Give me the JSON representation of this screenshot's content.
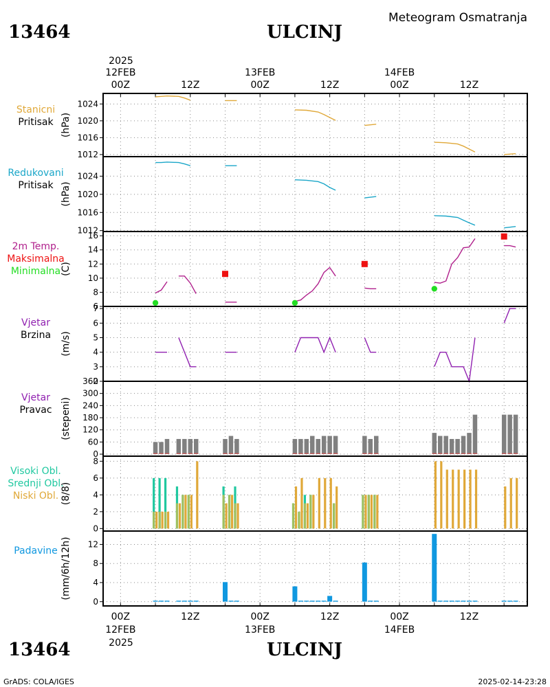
{
  "header": {
    "station_id": "13464",
    "station_name": "ULCINJ",
    "subtitle": "Meteogram Osmatranja"
  },
  "footer": {
    "station_id": "13464",
    "station_name": "ULCINJ",
    "credit": "GrADS: COLA/IGES",
    "timestamp": "2025-02-14-23:28"
  },
  "time_axis": {
    "year": "2025",
    "day_labels": [
      "12FEB",
      "13FEB",
      "14FEB"
    ],
    "hour_labels": [
      "00Z",
      "12Z",
      "00Z",
      "12Z",
      "00Z",
      "12Z"
    ],
    "hours": [
      0,
      12,
      24,
      36,
      48,
      60
    ],
    "range_hours": [
      -3,
      70
    ]
  },
  "colors": {
    "pressure_station": "#e0a838",
    "pressure_reduced": "#1aa6c8",
    "temp": "#b0208c",
    "tmax": "#ee1111",
    "tmin": "#22dd22",
    "wind": "#9020b0",
    "direction": "#808080",
    "direction_low": "#e05050",
    "cloud_high": "#20c8a0",
    "cloud_mid": "#a0c060",
    "cloud_low": "#e0a838",
    "precip": "#1098e0"
  },
  "chart_data": [
    {
      "type": "line",
      "title": "",
      "label_lines": [
        "Stanicni",
        "Pritisak"
      ],
      "ylabel": "(hPa)",
      "ylim": [
        1011.5,
        1026.5
      ],
      "yticks": [
        1012,
        1016,
        1020,
        1024
      ],
      "series": [
        {
          "color_key": "pressure_station",
          "segments": [
            [
              [
                6,
                1025.7
              ],
              [
                7,
                1025.8
              ],
              [
                8,
                1025.9
              ],
              [
                10,
                1025.8
              ],
              [
                11,
                1025.4
              ],
              [
                12,
                1024.9
              ]
            ],
            [
              [
                18,
                1024.8
              ],
              [
                20,
                1024.8
              ]
            ],
            [
              [
                30,
                1022.6
              ],
              [
                32,
                1022.5
              ],
              [
                34,
                1022.1
              ],
              [
                35,
                1021.5
              ],
              [
                36,
                1020.8
              ],
              [
                37,
                1020.1
              ]
            ],
            [
              [
                42,
                1018.9
              ],
              [
                44,
                1019.2
              ]
            ],
            [
              [
                54,
                1014.9
              ],
              [
                56,
                1014.8
              ],
              [
                58,
                1014.5
              ],
              [
                59,
                1014.0
              ],
              [
                60,
                1013.3
              ],
              [
                61,
                1012.6
              ]
            ],
            [
              [
                66,
                1012.0
              ],
              [
                68,
                1012.2
              ]
            ]
          ]
        }
      ]
    },
    {
      "type": "line",
      "title": "",
      "label_lines": [
        "Redukovani",
        "Pritisak"
      ],
      "ylabel": "(hPa)",
      "ylim": [
        1011.8,
        1028.3
      ],
      "yticks": [
        1012,
        1016,
        1020,
        1024
      ],
      "series": [
        {
          "color_key": "pressure_reduced",
          "segments": [
            [
              [
                6,
                1027.0
              ],
              [
                7,
                1027.0
              ],
              [
                8,
                1027.1
              ],
              [
                10,
                1027.0
              ],
              [
                11,
                1026.7
              ],
              [
                12,
                1026.3
              ]
            ],
            [
              [
                18,
                1026.3
              ],
              [
                20,
                1026.3
              ]
            ],
            [
              [
                30,
                1023.2
              ],
              [
                32,
                1023.1
              ],
              [
                34,
                1022.8
              ],
              [
                35,
                1022.3
              ],
              [
                36,
                1021.5
              ],
              [
                37,
                1020.9
              ]
            ],
            [
              [
                42,
                1019.2
              ],
              [
                44,
                1019.5
              ]
            ],
            [
              [
                54,
                1015.3
              ],
              [
                56,
                1015.2
              ],
              [
                58,
                1014.9
              ],
              [
                59,
                1014.3
              ],
              [
                60,
                1013.7
              ],
              [
                61,
                1013.2
              ]
            ],
            [
              [
                66,
                1012.6
              ],
              [
                68,
                1012.9
              ]
            ]
          ]
        }
      ]
    },
    {
      "type": "line",
      "title": "",
      "label_lines": [
        "2m Temp.",
        "Maksimalna",
        "Minimalna"
      ],
      "ylabel": "(C)",
      "ylim": [
        6,
        16.6
      ],
      "yticks": [
        6,
        8,
        10,
        12,
        14,
        16
      ],
      "series": [
        {
          "color_key": "temp",
          "segments": [
            [
              [
                6,
                7.9
              ],
              [
                7,
                8.3
              ],
              [
                8,
                9.5
              ]
            ],
            [
              [
                10,
                10.3
              ],
              [
                11,
                10.3
              ],
              [
                12,
                9.3
              ],
              [
                13,
                7.8
              ]
            ],
            [
              [
                18,
                6.6
              ],
              [
                20,
                6.6
              ]
            ],
            [
              [
                30,
                6.7
              ],
              [
                31,
                6.9
              ],
              [
                32,
                7.6
              ],
              [
                33,
                8.2
              ],
              [
                34,
                9.2
              ],
              [
                35,
                10.8
              ],
              [
                36,
                11.5
              ],
              [
                37,
                10.3
              ]
            ],
            [
              [
                42,
                8.6
              ],
              [
                43,
                8.5
              ],
              [
                44,
                8.5
              ]
            ],
            [
              [
                54,
                9.4
              ],
              [
                55,
                9.3
              ],
              [
                56,
                9.6
              ],
              [
                57,
                12.0
              ],
              [
                58,
                12.9
              ],
              [
                59,
                14.3
              ],
              [
                60,
                14.4
              ],
              [
                61,
                15.6
              ]
            ],
            [
              [
                66,
                14.6
              ],
              [
                67,
                14.6
              ],
              [
                68,
                14.4
              ]
            ]
          ]
        }
      ],
      "tmax_points": [
        [
          18,
          10.6
        ],
        [
          42,
          12.0
        ],
        [
          66,
          15.9
        ]
      ],
      "tmin_points": [
        [
          6,
          6.5
        ],
        [
          30,
          6.5
        ],
        [
          54,
          8.5
        ]
      ]
    },
    {
      "type": "line",
      "title": "",
      "label_lines": [
        "Vjetar",
        "Brzina"
      ],
      "ylabel": "(m/s)",
      "ylim": [
        2,
        7.15
      ],
      "yticks": [
        2,
        3,
        4,
        5,
        6,
        7
      ],
      "series": [
        {
          "color_key": "wind",
          "segments": [
            [
              [
                6,
                4
              ],
              [
                8,
                4
              ]
            ],
            [
              [
                10,
                5
              ],
              [
                12,
                3
              ],
              [
                13,
                3
              ]
            ],
            [
              [
                18,
                4
              ],
              [
                20,
                4
              ]
            ],
            [
              [
                30,
                4
              ],
              [
                31,
                5
              ],
              [
                34,
                5
              ],
              [
                35,
                4
              ],
              [
                36,
                5
              ],
              [
                37,
                4
              ]
            ],
            [
              [
                42,
                5
              ],
              [
                43,
                4
              ],
              [
                44,
                4
              ]
            ],
            [
              [
                54,
                3
              ],
              [
                55,
                4
              ],
              [
                56,
                4
              ],
              [
                57,
                3
              ],
              [
                59,
                3
              ],
              [
                60,
                2
              ],
              [
                61,
                5
              ]
            ],
            [
              [
                66,
                6
              ],
              [
                67,
                7
              ],
              [
                68,
                7
              ]
            ]
          ]
        }
      ]
    },
    {
      "type": "bar",
      "title": "",
      "label_lines": [
        "Vjetar",
        "Pravac"
      ],
      "ylabel": "(stepeni)",
      "ylim": [
        -10,
        360
      ],
      "yticks": [
        0,
        60,
        120,
        180,
        240,
        300,
        360
      ],
      "x": [
        6,
        7,
        8,
        10,
        11,
        12,
        13,
        18,
        19,
        20,
        30,
        31,
        32,
        33,
        34,
        35,
        36,
        37,
        42,
        43,
        44,
        54,
        55,
        56,
        57,
        58,
        59,
        60,
        61,
        66,
        67,
        68
      ],
      "values": [
        60,
        60,
        75,
        75,
        75,
        75,
        75,
        75,
        90,
        75,
        75,
        75,
        75,
        90,
        75,
        90,
        90,
        90,
        90,
        75,
        90,
        105,
        90,
        90,
        75,
        75,
        90,
        105,
        195,
        195,
        195,
        195
      ]
    },
    {
      "type": "bar",
      "title": "",
      "label_lines": [
        "Visoki Obl.",
        "Srednji Obl.",
        "Niski Obl."
      ],
      "ylabel": "(8/8)",
      "ylim": [
        -0.3,
        8.6
      ],
      "yticks": [
        0,
        2,
        4,
        6,
        8
      ],
      "x": [
        6,
        7,
        8,
        10,
        11,
        12,
        13,
        18,
        19,
        20,
        30,
        31,
        32,
        33,
        34,
        35,
        36,
        37,
        42,
        43,
        44,
        54,
        55,
        56,
        57,
        58,
        59,
        60,
        61,
        66,
        67,
        68
      ],
      "series": [
        {
          "name": "Visoki Obl.",
          "color_key": "cloud_high",
          "values": [
            6,
            6,
            6,
            5,
            4,
            4,
            0,
            5,
            4,
            5,
            3,
            2,
            4,
            4,
            0,
            0,
            0,
            3,
            4,
            4,
            4,
            0,
            0,
            0,
            0,
            0,
            0,
            0,
            0,
            0,
            0,
            0
          ]
        },
        {
          "name": "Srednji Obl.",
          "color_key": "cloud_mid",
          "values": [
            2,
            2,
            2,
            3,
            4,
            4,
            0,
            4,
            4,
            3,
            3,
            2,
            3,
            4,
            0,
            0,
            0,
            3,
            4,
            4,
            4,
            0,
            0,
            0,
            0,
            0,
            0,
            0,
            0,
            0,
            0,
            0
          ]
        },
        {
          "name": "Niski Obl.",
          "color_key": "cloud_low",
          "values": [
            2,
            2,
            2,
            3,
            4,
            4,
            8,
            3,
            4,
            3,
            5,
            6,
            3,
            4,
            6,
            6,
            6,
            5,
            4,
            4,
            4,
            8,
            8,
            7,
            7,
            7,
            7,
            7,
            7,
            5,
            6,
            6
          ]
        }
      ]
    },
    {
      "type": "bar",
      "title": "",
      "label_lines": [
        "Padavine"
      ],
      "ylabel": "(mm/6h/12h)",
      "ylim": [
        -0.9,
        14.8
      ],
      "yticks": [
        0,
        4,
        8,
        12
      ],
      "x": [
        6,
        7,
        8,
        10,
        11,
        12,
        13,
        18,
        19,
        20,
        30,
        31,
        32,
        33,
        34,
        35,
        36,
        37,
        42,
        43,
        44,
        54,
        55,
        56,
        57,
        58,
        59,
        60,
        61,
        66,
        67,
        68
      ],
      "values": [
        0.2,
        0.2,
        0.2,
        0.2,
        0.2,
        0.2,
        0.2,
        4.1,
        0.2,
        0.2,
        3.2,
        0.2,
        0.2,
        0.2,
        0.2,
        0.2,
        1.2,
        0.2,
        8.2,
        0.2,
        0.2,
        14.2,
        0.2,
        0.2,
        0.2,
        0.2,
        0.2,
        0.2,
        0.2,
        0.2,
        0.2,
        0.2
      ]
    }
  ]
}
